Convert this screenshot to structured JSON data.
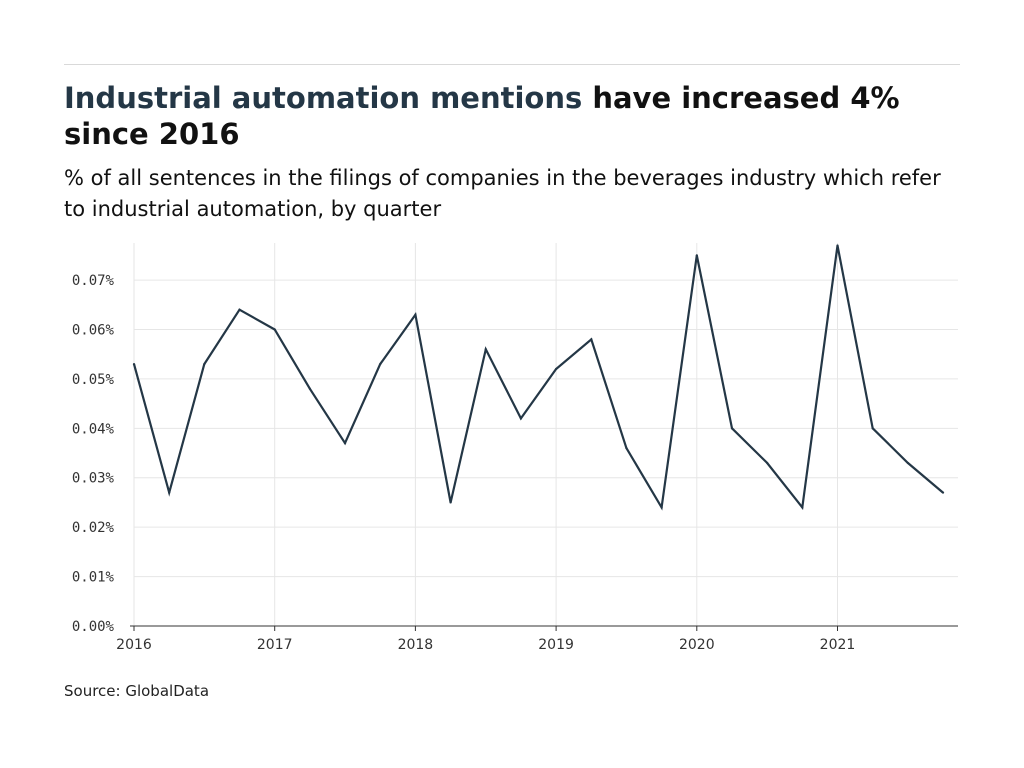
{
  "title": {
    "highlight": "Industrial automation mentions",
    "rest": " have increased 4% since 2016"
  },
  "subtitle": "% of all sentences in the filings of companies in the beverages industry which refer to industrial automation, by quarter",
  "source": "Source: GlobalData",
  "colors": {
    "line": "#243746",
    "grid": "#e6e6e6",
    "axis": "#333333",
    "title_highlight": "#243746"
  },
  "chart_data": {
    "type": "line",
    "title": "Industrial automation mentions have increased 4% since 2016",
    "subtitle": "% of all sentences in the filings of companies in the beverages industry which refer to industrial automation, by quarter",
    "xlabel": "",
    "ylabel": "",
    "x": [
      "2016 Q1",
      "2016 Q2",
      "2016 Q3",
      "2016 Q4",
      "2017 Q1",
      "2017 Q2",
      "2017 Q3",
      "2017 Q4",
      "2018 Q1",
      "2018 Q2",
      "2018 Q3",
      "2018 Q4",
      "2019 Q1",
      "2019 Q2",
      "2019 Q3",
      "2019 Q4",
      "2020 Q1",
      "2020 Q2",
      "2020 Q3",
      "2020 Q4",
      "2021 Q1",
      "2021 Q2",
      "2021 Q3",
      "2021 Q4"
    ],
    "series": [
      {
        "values": [
          0.053,
          0.027,
          0.053,
          0.064,
          0.06,
          0.048,
          0.037,
          0.053,
          0.063,
          0.025,
          0.056,
          0.042,
          0.052,
          0.058,
          0.036,
          0.024,
          0.075,
          0.04,
          0.033,
          0.024,
          0.077,
          0.04,
          0.033,
          0.027
        ]
      }
    ],
    "x_tick_labels": [
      "2016",
      "2017",
      "2018",
      "2019",
      "2020",
      "2021"
    ],
    "y_tick_labels": [
      "0.00%",
      "0.01%",
      "0.02%",
      "0.03%",
      "0.04%",
      "0.05%",
      "0.06%",
      "0.07%"
    ],
    "y_ticks": [
      0,
      0.01,
      0.02,
      0.03,
      0.04,
      0.05,
      0.06,
      0.07
    ],
    "ylim": [
      0,
      0.0775
    ],
    "grid": true,
    "legend": "none"
  }
}
